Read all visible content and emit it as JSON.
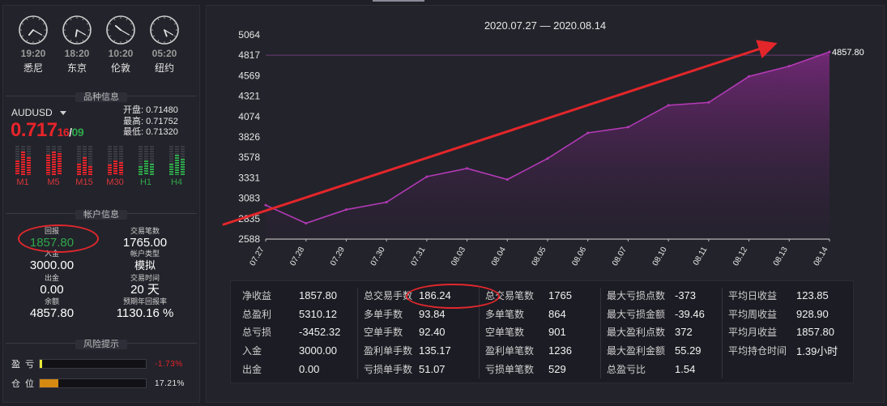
{
  "clocks": [
    {
      "time": "19:20",
      "city": "悉尼",
      "hour": 19,
      "minute": 20
    },
    {
      "time": "18:20",
      "city": "东京",
      "hour": 18,
      "minute": 20
    },
    {
      "time": "10:20",
      "city": "伦敦",
      "hour": 10,
      "minute": 20
    },
    {
      "time": "05:20",
      "city": "纽约",
      "hour": 5,
      "minute": 20
    }
  ],
  "symbol_section": {
    "title": "品种信息",
    "symbol": "AUDUSD",
    "price_main": "0.717",
    "price_pips": "16",
    "price_sep": "/",
    "price_spread": "09",
    "open": "开盘: 0.71480",
    "high": "最高: 0.71752",
    "low": "最低: 0.71320",
    "timeframes": [
      {
        "label": "M1",
        "trend": "red",
        "levels": [
          0.5,
          0.8,
          0.6
        ]
      },
      {
        "label": "M5",
        "trend": "red",
        "levels": [
          0.7,
          0.8,
          0.75
        ]
      },
      {
        "label": "M15",
        "trend": "red",
        "levels": [
          0.4,
          0.6,
          0.3
        ]
      },
      {
        "label": "M30",
        "trend": "red",
        "levels": [
          0.35,
          0.5,
          0.45
        ]
      },
      {
        "label": "H1",
        "trend": "green",
        "levels": [
          0.3,
          0.5,
          0.4
        ]
      },
      {
        "label": "H4",
        "trend": "green",
        "levels": [
          0.4,
          0.7,
          0.55
        ]
      }
    ]
  },
  "account_section": {
    "title": "帐户信息",
    "return_label": "回报",
    "return_value": "1857.80",
    "trades_label": "交易笔数",
    "trades_value": "1765.00",
    "deposit_label": "入金",
    "deposit_value": "3000.00",
    "type_label": "帐户类型",
    "type_value": "模拟",
    "withdraw_label": "出金",
    "withdraw_value": "0.00",
    "time_label": "交易时间",
    "time_value": "20 天",
    "balance_label": "余额",
    "balance_value": "4857.80",
    "annual_label": "预期年回报率",
    "annual_value": "1130.16 %"
  },
  "risk_section": {
    "title": "风险提示",
    "pnl_label": "盈亏",
    "pnl_value": "-1.73%",
    "pnl_fill": 0.02,
    "pos_label": "仓位",
    "pos_value": "17.21%",
    "pos_fill": 0.1721
  },
  "colors": {
    "line": "#b23ab5",
    "arrow": "#e3262a",
    "red": "#e8242a",
    "green": "#2ea84a",
    "pnl_bar": "#e8e838",
    "pos_bar": "#d58a12"
  },
  "chart_data": {
    "type": "area",
    "title": "2020.07.27 — 2020.08.14",
    "categories": [
      "07.27",
      "07.28",
      "07.29",
      "07.30",
      "07.31",
      "08.03",
      "08.04",
      "08.05",
      "08.06",
      "08.07",
      "08.10",
      "08.11",
      "08.12",
      "08.13",
      "08.14"
    ],
    "series": [
      {
        "values": [
          3000,
          2780,
          2945,
          3035,
          3345,
          3445,
          3310,
          3565,
          3875,
          3945,
          4210,
          4245,
          4560,
          4685,
          4857.8
        ]
      }
    ],
    "end_label": "4857.80",
    "yticks": [
      "5064",
      "4817",
      "4569",
      "4321",
      "4074",
      "3826",
      "3578",
      "3331",
      "3083",
      "2835",
      "2588"
    ],
    "ylim": [
      2588,
      5064
    ],
    "grid": false
  },
  "stats": [
    [
      {
        "label": "净收益",
        "value": "1857.80"
      },
      {
        "label": "总盈利",
        "value": "5310.12"
      },
      {
        "label": "总亏损",
        "value": "-3452.32"
      },
      {
        "label": "入金",
        "value": "3000.00"
      },
      {
        "label": "出金",
        "value": "0.00"
      }
    ],
    [
      {
        "label": "总交易手数",
        "value": "186.24"
      },
      {
        "label": "多单手数",
        "value": "93.84"
      },
      {
        "label": "空单手数",
        "value": "92.40"
      },
      {
        "label": "盈利单手数",
        "value": "135.17"
      },
      {
        "label": "亏损单手数",
        "value": "51.07"
      }
    ],
    [
      {
        "label": "总交易笔数",
        "value": "1765"
      },
      {
        "label": "多单笔数",
        "value": "864"
      },
      {
        "label": "空单笔数",
        "value": "901"
      },
      {
        "label": "盈利单笔数",
        "value": "1236"
      },
      {
        "label": "亏损单笔数",
        "value": "529"
      }
    ],
    [
      {
        "label": "最大亏损点数",
        "value": "-373"
      },
      {
        "label": "最大亏损金额",
        "value": "-39.46"
      },
      {
        "label": "最大盈利点数",
        "value": "372"
      },
      {
        "label": "最大盈利金额",
        "value": "55.29"
      },
      {
        "label": "总盈亏比",
        "value": "1.54"
      }
    ],
    [
      {
        "label": "平均日收益",
        "value": "123.85"
      },
      {
        "label": "平均周收益",
        "value": "928.90"
      },
      {
        "label": "平均月收益",
        "value": "1857.80"
      },
      {
        "label": "平均持仓时间",
        "value": "1.39小时"
      }
    ]
  ]
}
